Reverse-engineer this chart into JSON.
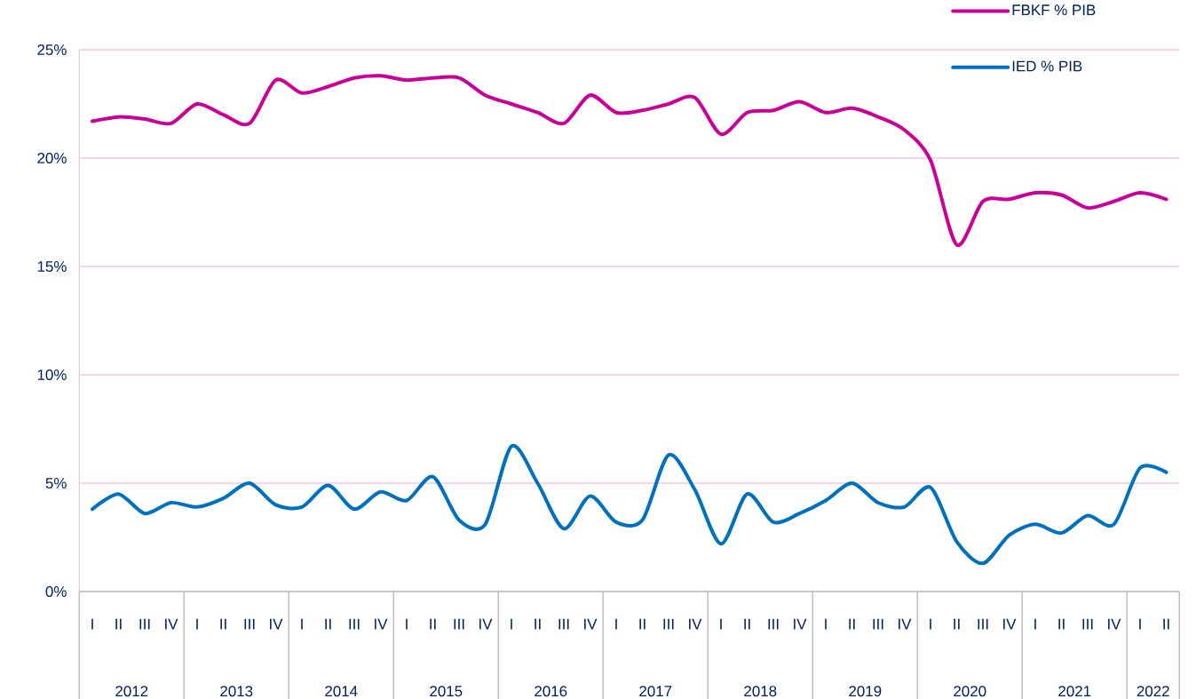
{
  "chart_data": {
    "type": "line",
    "categories": [
      "I",
      "II",
      "III",
      "IV",
      "I",
      "II",
      "III",
      "IV",
      "I",
      "II",
      "III",
      "IV",
      "I",
      "II",
      "III",
      "IV",
      "I",
      "II",
      "III",
      "IV",
      "I",
      "II",
      "III",
      "IV",
      "I",
      "II",
      "III",
      "IV",
      "I",
      "II",
      "III",
      "IV",
      "I",
      "II",
      "III",
      "IV",
      "I",
      "II",
      "III",
      "IV",
      "I",
      "II"
    ],
    "annotations": [
      "2012",
      "2013",
      "2014",
      "2015",
      "2016",
      "2017",
      "2018",
      "2019",
      "2020",
      "2021",
      "2022"
    ],
    "series": [
      {
        "name": "FBKF % PIB",
        "color": "#cc0099",
        "values": [
          21.7,
          21.9,
          21.8,
          21.6,
          22.5,
          22.0,
          21.6,
          23.6,
          23.0,
          23.3,
          23.7,
          23.8,
          23.6,
          23.7,
          23.7,
          22.9,
          22.5,
          22.1,
          21.6,
          22.9,
          22.1,
          22.2,
          22.5,
          22.8,
          21.1,
          22.1,
          22.2,
          22.6,
          22.1,
          22.3,
          21.9,
          21.3,
          19.9,
          16.0,
          18.0,
          18.1,
          18.4,
          18.3,
          17.7,
          18.0,
          18.4,
          18.1
        ]
      },
      {
        "name": "IED % PIB",
        "color": "#0070c0",
        "values": [
          3.8,
          4.5,
          3.6,
          4.1,
          3.9,
          4.3,
          5.0,
          4.0,
          3.9,
          4.9,
          3.8,
          4.6,
          4.2,
          5.3,
          3.3,
          3.1,
          6.7,
          5.0,
          2.9,
          4.4,
          3.2,
          3.3,
          6.3,
          4.7,
          2.2,
          4.5,
          3.2,
          3.6,
          4.2,
          5.0,
          4.1,
          3.9,
          4.8,
          2.3,
          1.3,
          2.6,
          3.1,
          2.7,
          3.5,
          3.1,
          5.7,
          5.5
        ]
      }
    ],
    "ylim": [
      0,
      25
    ],
    "yticks": [
      {
        "value": 0,
        "label": "0%"
      },
      {
        "value": 5,
        "label": "5%"
      },
      {
        "value": 10,
        "label": "10%"
      },
      {
        "value": 15,
        "label": "15%"
      },
      {
        "value": 20,
        "label": "20%"
      },
      {
        "value": 25,
        "label": "25%"
      }
    ],
    "grid": "y",
    "legend": "top right",
    "line_style": "solid"
  }
}
